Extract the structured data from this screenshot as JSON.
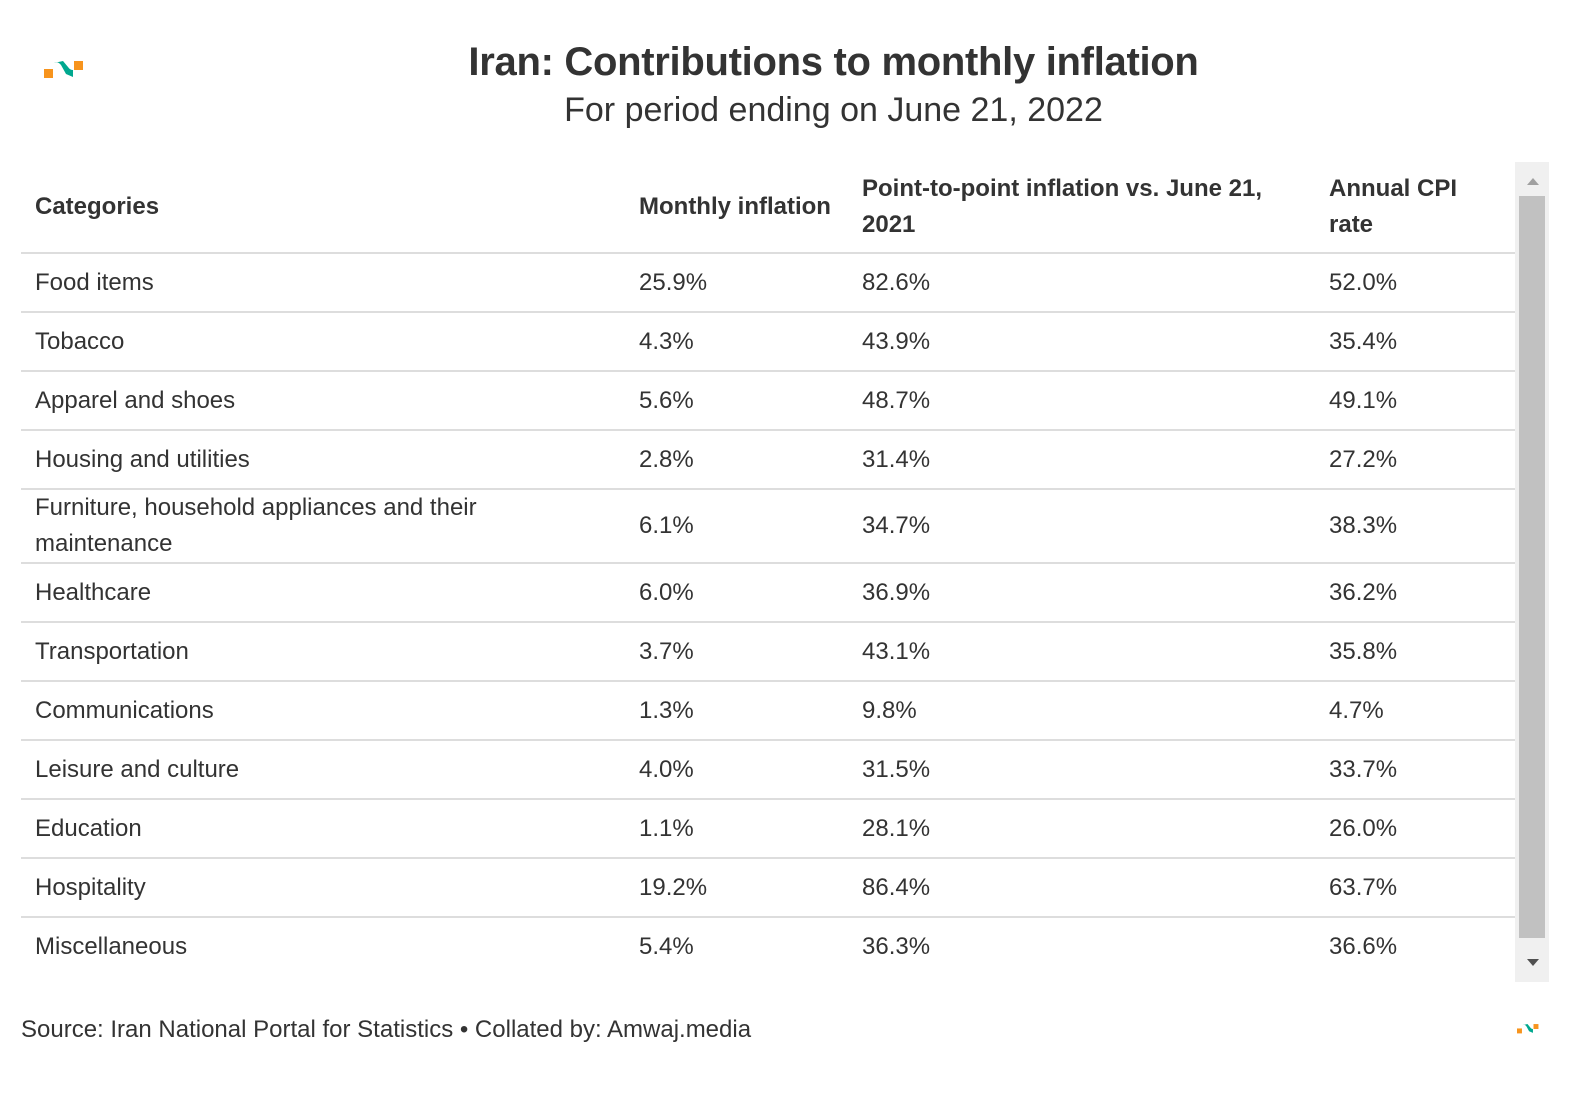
{
  "header": {
    "title": "Iran: Contributions to monthly inflation",
    "subtitle": "For period ending on June 21, 2022"
  },
  "colors": {
    "logo_orange": "#f7941d",
    "logo_teal": "#00a88f",
    "text": "#333333",
    "rule": "#dddddd"
  },
  "table": {
    "headers": [
      "Categories",
      "Monthly inflation",
      "Point-to-point inflation vs. June 21, 2021",
      "Annual CPI rate"
    ],
    "rows": [
      [
        "Food items",
        "25.9%",
        "82.6%",
        "52.0%"
      ],
      [
        "Tobacco",
        "4.3%",
        "43.9%",
        "35.4%"
      ],
      [
        "Apparel and shoes",
        "5.6%",
        "48.7%",
        "49.1%"
      ],
      [
        "Housing and utilities",
        "2.8%",
        "31.4%",
        "27.2%"
      ],
      [
        "Furniture, household appliances and their maintenance",
        "6.1%",
        "34.7%",
        "38.3%"
      ],
      [
        "Healthcare",
        "6.0%",
        "36.9%",
        "36.2%"
      ],
      [
        "Transportation",
        "3.7%",
        "43.1%",
        "35.8%"
      ],
      [
        "Communications",
        "1.3%",
        "9.8%",
        "4.7%"
      ],
      [
        "Leisure and culture",
        "4.0%",
        "31.5%",
        "33.7%"
      ],
      [
        "Education",
        "1.1%",
        "28.1%",
        "26.0%"
      ],
      [
        "Hospitality",
        "19.2%",
        "86.4%",
        "63.7%"
      ],
      [
        "Miscellaneous",
        "5.4%",
        "36.3%",
        "36.6%"
      ]
    ]
  },
  "chart_data": {
    "type": "table",
    "title": "Iran: Contributions to monthly inflation",
    "subtitle": "For period ending on June 21, 2022",
    "columns": [
      "Categories",
      "Monthly inflation",
      "Point-to-point inflation vs. June 21, 2021",
      "Annual CPI rate"
    ],
    "categories": [
      "Food items",
      "Tobacco",
      "Apparel and shoes",
      "Housing and utilities",
      "Furniture, household appliances and their maintenance",
      "Healthcare",
      "Transportation",
      "Communications",
      "Leisure and culture",
      "Education",
      "Hospitality",
      "Miscellaneous"
    ],
    "series": [
      {
        "name": "Monthly inflation",
        "unit": "%",
        "values": [
          25.9,
          4.3,
          5.6,
          2.8,
          6.1,
          6.0,
          3.7,
          1.3,
          4.0,
          1.1,
          19.2,
          5.4
        ]
      },
      {
        "name": "Point-to-point inflation vs. June 21, 2021",
        "unit": "%",
        "values": [
          82.6,
          43.9,
          48.7,
          31.4,
          34.7,
          36.9,
          43.1,
          9.8,
          31.5,
          28.1,
          86.4,
          36.3
        ]
      },
      {
        "name": "Annual CPI rate",
        "unit": "%",
        "values": [
          52.0,
          35.4,
          49.1,
          27.2,
          38.3,
          36.2,
          35.8,
          4.7,
          33.7,
          26.0,
          63.7,
          36.6
        ]
      }
    ],
    "source": "Source: Iran National Portal for Statistics • Collated by: Amwaj.media"
  },
  "footer": {
    "source": "Source: Iran National Portal for Statistics • Collated by: Amwaj.media"
  },
  "icons": {
    "logo": "amwaj-logo-icon",
    "scroll_up": "triangle-up-icon",
    "scroll_down": "triangle-down-icon"
  }
}
